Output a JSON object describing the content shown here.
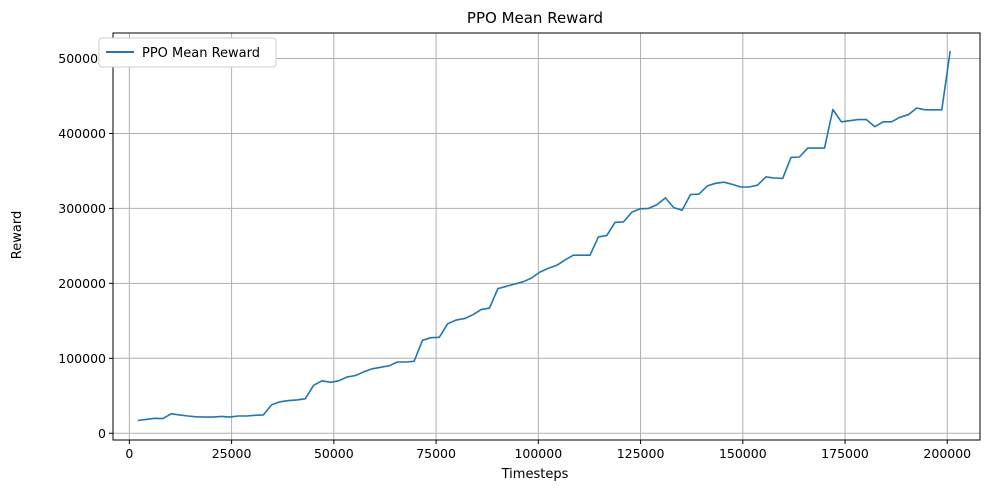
{
  "chart_data": {
    "type": "line",
    "title": "PPO Mean Reward",
    "xlabel": "Timesteps",
    "ylabel": "Reward",
    "xlim": [
      -4000,
      208000
    ],
    "ylim": [
      -9000,
      534000
    ],
    "grid": true,
    "legend_position": "top-left",
    "xticks": [
      0,
      25000,
      50000,
      75000,
      100000,
      125000,
      150000,
      175000,
      200000
    ],
    "xtick_labels": [
      "0",
      "25000",
      "50000",
      "75000",
      "100000",
      "125000",
      "150000",
      "175000",
      "200000"
    ],
    "yticks": [
      0,
      100000,
      200000,
      300000,
      400000,
      500000
    ],
    "ytick_labels": [
      "0",
      "100000",
      "200000",
      "300000",
      "400000",
      "500000"
    ],
    "series": [
      {
        "name": "PPO Mean Reward",
        "color": "#1f77b4",
        "x": [
          2048,
          4096,
          6144,
          8192,
          10240,
          12288,
          14336,
          16384,
          18432,
          20480,
          22528,
          24576,
          26624,
          28672,
          30720,
          32768,
          34816,
          36864,
          38912,
          40960,
          43008,
          45056,
          47104,
          49152,
          51200,
          53248,
          55296,
          57344,
          59392,
          61440,
          63488,
          65536,
          67584,
          69632,
          71680,
          73728,
          75776,
          77824,
          79872,
          81920,
          83968,
          86016,
          88064,
          90112,
          92160,
          94208,
          96256,
          98304,
          100352,
          102400,
          104448,
          106496,
          108544,
          110592,
          112640,
          114688,
          116736,
          118784,
          120832,
          122880,
          124928,
          126976,
          129024,
          131072,
          133120,
          135168,
          137216,
          139264,
          141312,
          143360,
          145408,
          147456,
          149504,
          151552,
          153600,
          155648,
          157696,
          159744,
          161792,
          163840,
          165888,
          167936,
          169984,
          172032,
          174080,
          176128,
          178176,
          180224,
          182272,
          184320,
          186368,
          188416,
          190464,
          192512,
          194560,
          196608,
          198656,
          200704
        ],
        "values": [
          17000,
          18500,
          20000,
          19500,
          26000,
          24500,
          23000,
          22000,
          21500,
          21500,
          22500,
          21500,
          23000,
          23000,
          24000,
          24500,
          38000,
          42000,
          43500,
          44500,
          46000,
          64000,
          70000,
          68000,
          70000,
          75000,
          77000,
          82000,
          86000,
          88000,
          90000,
          95000,
          95000,
          96000,
          124000,
          127500,
          128000,
          146000,
          151000,
          153000,
          158000,
          165000,
          167000,
          193000,
          196000,
          199000,
          202000,
          207000,
          215000,
          220000,
          224000,
          231000,
          237500,
          237500,
          237500,
          262000,
          264000,
          281500,
          282000,
          295000,
          299500,
          300000,
          305000,
          314000,
          301000,
          297500,
          318500,
          319000,
          330000,
          333500,
          335000,
          332000,
          328500,
          328500,
          331000,
          342000,
          340500,
          340000,
          368000,
          368500,
          380500,
          380500,
          380500,
          432000,
          415500,
          417000,
          418500,
          418500,
          409000,
          415500,
          415500,
          421500,
          425000,
          434000,
          431500,
          431500,
          431500,
          510000
        ]
      }
    ]
  }
}
